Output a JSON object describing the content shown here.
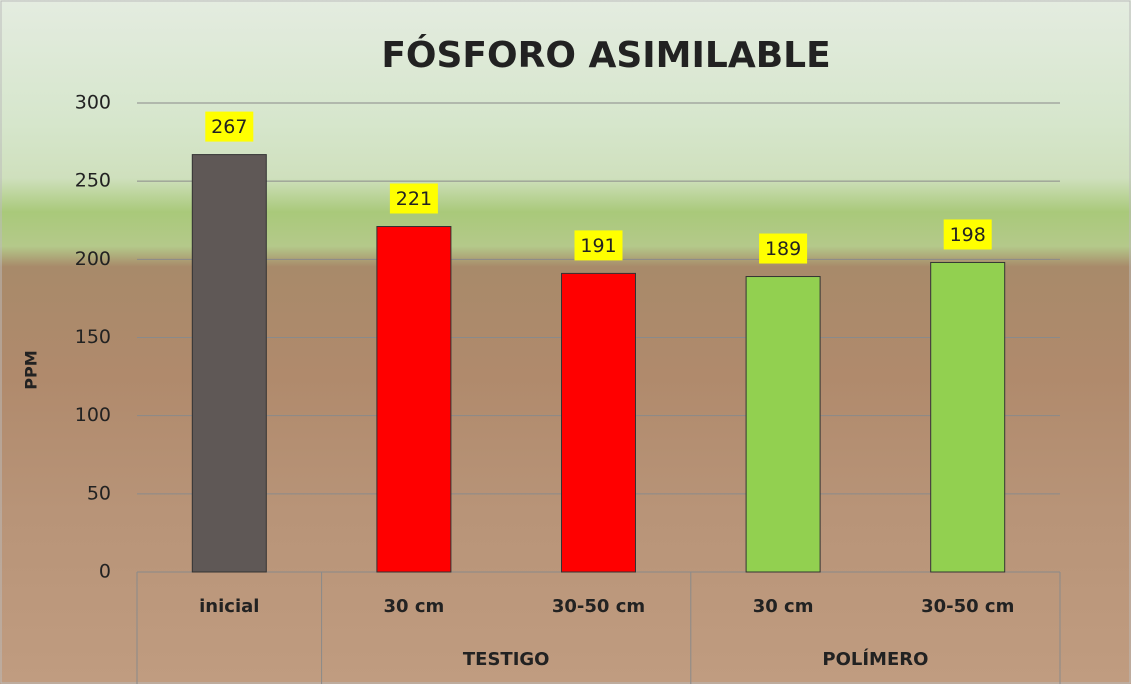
{
  "chart_data": {
    "type": "bar",
    "title": "FÓSFORO ASIMILABLE",
    "y_label": "PPM",
    "categories": [
      "inicial",
      "30 cm",
      "30-50 cm",
      "30 cm",
      "30-50 cm"
    ],
    "groups": [
      null,
      "TESTIGO",
      "TESTIGO",
      "POLÍMERO",
      "POLÍMERO"
    ],
    "values": [
      267,
      221,
      191,
      189,
      198
    ],
    "colors": [
      "#5f5856",
      "#ff0000",
      "#ff0000",
      "#92d050",
      "#92d050"
    ],
    "ylim": [
      0,
      300
    ],
    "yticks": [
      0,
      50,
      100,
      150,
      200,
      250,
      300
    ],
    "grid": true
  }
}
